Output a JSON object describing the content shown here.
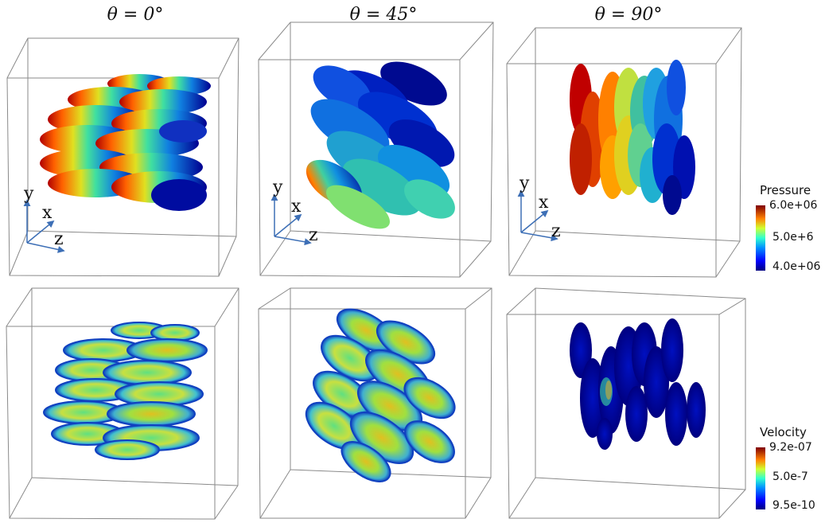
{
  "columns": [
    {
      "title": "θ = 0°"
    },
    {
      "title": "θ = 45°"
    },
    {
      "title": "θ = 90°"
    }
  ],
  "axes_labels": {
    "y": "y",
    "x": "x",
    "z": "z"
  },
  "colorbars": {
    "pressure": {
      "title": "Pressure",
      "max": "6.0e+06",
      "mid": "5.0e+6",
      "min": "4.0e+06"
    },
    "velocity": {
      "title": "Velocity",
      "max": "9.2e-07",
      "mid": "5.0e-7",
      "min": "9.5e-10"
    }
  },
  "colors": {
    "box_edge": "#8a8a8a",
    "axis_arrow": "#3d6fb6",
    "colormap": [
      "#00007f",
      "#0000ff",
      "#0080ff",
      "#00e0ff",
      "#60ff90",
      "#e0ff20",
      "#ff9000",
      "#ff2000",
      "#800000"
    ]
  }
}
